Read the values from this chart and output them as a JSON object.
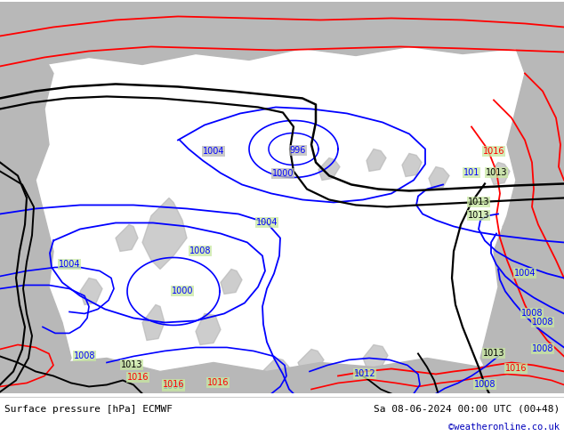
{
  "title_left": "Surface pressure [hPa] ECMWF",
  "title_right": "Sa 08-06-2024 00:00 UTC (00+48)",
  "watermark": "©weatheronline.co.uk",
  "watermark_color": "#0000bb",
  "bg_color": "#c8e8a0",
  "gray_color": "#b8b8b8",
  "white_color": "#e8e8e8",
  "footer_bg": "#ffffff",
  "fig_width": 6.34,
  "fig_height": 4.9,
  "bc": "#0000ff",
  "rc": "#ff0000",
  "kc": "#000000",
  "label_fontsize": 7.0,
  "footer_fontsize": 8.0
}
